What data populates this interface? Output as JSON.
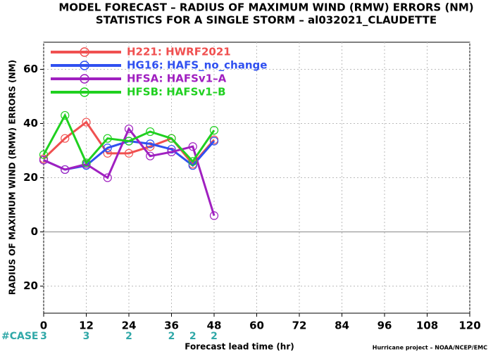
{
  "chart_data": {
    "type": "line",
    "title": "MODEL FORECAST – RADIUS OF MAXIMUM WIND (RMW) ERRORS (NM)",
    "subtitle": "STATISTICS FOR A SINGLE STORM – al032021_CLAUDETTE",
    "ylabel": "RADIUS OF MAXIMUM WIND (RMW) ERRORS (NM)",
    "xlabel": "Forecast lead time (hr)",
    "credit": "Hurricane project – NOAA/NCEP/EMC",
    "x": [
      0,
      6,
      12,
      18,
      24,
      30,
      36,
      42,
      48
    ],
    "series": [
      {
        "name": "H221: HWRF2021",
        "color": "#f05050",
        "values": [
          27,
          34.5,
          40.5,
          29,
          29,
          31.5,
          34.5,
          25,
          34
        ]
      },
      {
        "name": "HG16: HAFS_no_change",
        "color": "#3050f0",
        "values": [
          26.5,
          23,
          24.5,
          31,
          33.5,
          32.5,
          30.5,
          24.5,
          33.5
        ]
      },
      {
        "name": "HFSA: HAFSv1–A",
        "color": "#a020c0",
        "values": [
          26.5,
          23,
          25,
          20,
          38,
          28,
          29.5,
          31.5,
          6
        ]
      },
      {
        "name": "HFSB: HAFSv1–B",
        "color": "#20d020",
        "values": [
          28.5,
          43,
          25.5,
          34.5,
          33.5,
          37,
          34.5,
          26,
          37.5
        ]
      }
    ],
    "xlim": [
      0,
      120
    ],
    "xticks": [
      0,
      12,
      24,
      36,
      48,
      60,
      72,
      84,
      96,
      108,
      120
    ],
    "ylim": [
      -30,
      70
    ],
    "yticks": [
      60,
      40,
      20,
      0,
      {
        "value": -20,
        "label": "20"
      }
    ],
    "grid": true,
    "legend": "upper left",
    "cases": {
      "label": "#CASE",
      "color": "#30a8a8",
      "x": [
        0,
        12,
        24,
        36,
        42,
        48
      ],
      "values": [
        3,
        3,
        2,
        2,
        2,
        2
      ]
    }
  }
}
